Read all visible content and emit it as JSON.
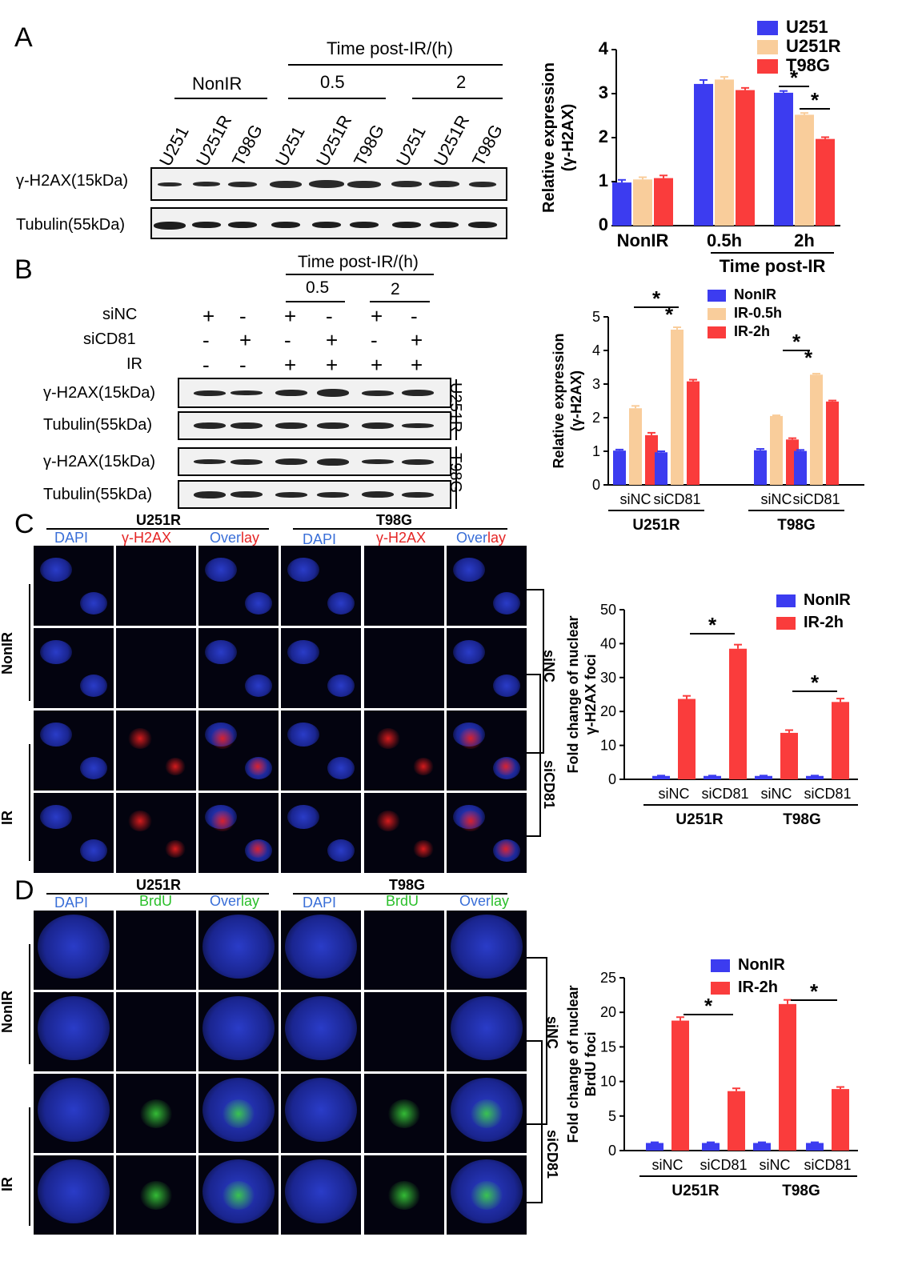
{
  "panels": {
    "A": {
      "letter": "A",
      "time_label": "Time post-IR/(h)",
      "group_labels": [
        "NonIR",
        "0.5",
        "2"
      ],
      "lanes": [
        "U251",
        "U251R",
        "T98G",
        "U251",
        "U251R",
        "T98G",
        "U251",
        "U251R",
        "T98G"
      ],
      "row_labels": [
        "γ-H2AX(15kDa)",
        "Tubulin(55kDa)"
      ]
    },
    "B": {
      "letter": "B",
      "time_label": "Time post-IR/(h)",
      "group_labels": [
        "0.5",
        "2"
      ],
      "condition_rows": [
        {
          "label": "siNC",
          "signs": [
            "+",
            "-",
            "+",
            "-",
            "+",
            "-"
          ]
        },
        {
          "label": "siCD81",
          "signs": [
            "-",
            "+",
            "-",
            "+",
            "-",
            "+"
          ]
        },
        {
          "label": "IR",
          "signs": [
            "-",
            "-",
            "+",
            "+",
            "+",
            "+"
          ]
        }
      ],
      "row_labels": [
        "γ-H2AX(15kDa)",
        "Tubulin(55kDa)",
        "γ-H2AX(15kDa)",
        "Tubulin(55kDa)"
      ],
      "side_labels": [
        "U251R",
        "T98G"
      ]
    },
    "C": {
      "letter": "C",
      "cell_lines": [
        "U251R",
        "T98G"
      ],
      "channels": [
        "DAPI",
        "γ-H2AX",
        "Over",
        "lay"
      ],
      "row_labels": [
        "NonIR",
        "IR"
      ],
      "side_labels": [
        "siNC",
        "siCD81"
      ]
    },
    "D": {
      "letter": "D",
      "cell_lines": [
        "U251R",
        "T98G"
      ],
      "channels": [
        "DAPI",
        "BrdU",
        "Over",
        "lay"
      ],
      "row_labels": [
        "NonIR",
        "IR"
      ],
      "side_labels": [
        "siNC",
        "siCD81"
      ]
    }
  },
  "colors": {
    "blue": "#3c3cf0",
    "peach": "#f9cd9b",
    "red": "#fa3c3c",
    "dapi_text": "#3a6fd8",
    "h2ax_text": "#e52525",
    "brdu_text": "#2bbf2b"
  },
  "chart_data": [
    {
      "type": "bar",
      "panel": "A",
      "categories": [
        "NonIR",
        "0.5h",
        "2h"
      ],
      "series": [
        {
          "name": "U251",
          "values": [
            0.98,
            3.22,
            3.02
          ]
        },
        {
          "name": "U251R",
          "values": [
            1.05,
            3.32,
            2.52
          ]
        },
        {
          "name": "T98G",
          "values": [
            1.08,
            3.08,
            1.97
          ]
        }
      ],
      "errors": [
        [
          0.06,
          0.09,
          0.04
        ],
        [
          0.05,
          0.06,
          0.04
        ],
        [
          0.06,
          0.05,
          0.04
        ]
      ],
      "xlabel": "Time post-IR",
      "ylabel": "Relative expression",
      "ylabel2": "(γ-H2AX)",
      "ylim": [
        0,
        4
      ],
      "yticks": [
        0,
        1,
        2,
        3,
        4
      ],
      "significance": [
        {
          "between": "U251-U251R",
          "group": 2,
          "label": "*"
        },
        {
          "between": "U251R-T98G",
          "group": 2,
          "label": "*"
        }
      ],
      "legend": "top-right"
    },
    {
      "type": "bar",
      "panel": "B",
      "categories": [
        "siNC",
        "siCD81",
        "siNC",
        "siCD81"
      ],
      "groups": [
        "U251R",
        "T98G"
      ],
      "series": [
        {
          "name": "NonIR",
          "values": [
            1.02,
            0.97,
            1.03,
            1.01
          ]
        },
        {
          "name": "IR-0.5h",
          "values": [
            2.28,
            4.62,
            2.05,
            3.28
          ]
        },
        {
          "name": "IR-2h",
          "values": [
            1.48,
            3.08,
            1.35,
            2.48
          ]
        }
      ],
      "errors": [
        [
          0.03,
          0.03,
          0.04,
          0.03
        ],
        [
          0.07,
          0.07,
          0.02,
          0.03
        ],
        [
          0.07,
          0.05,
          0.04,
          0.03
        ]
      ],
      "ylabel": "Relative expression",
      "ylabel2": "(γ-H2AX)",
      "ylim": [
        0,
        5
      ],
      "yticks": [
        0,
        1,
        2,
        3,
        4,
        5
      ],
      "significance": [
        {
          "label": "*"
        },
        {
          "label": "*"
        },
        {
          "label": "*"
        },
        {
          "label": "*"
        }
      ],
      "legend": "top-right"
    },
    {
      "type": "bar",
      "panel": "C",
      "categories": [
        "siNC",
        "siCD81",
        "siNC",
        "siCD81"
      ],
      "groups": [
        "U251R",
        "T98G"
      ],
      "series": [
        {
          "name": "NonIR",
          "values": [
            1.0,
            1.0,
            1.0,
            1.0
          ]
        },
        {
          "name": "IR-2h",
          "values": [
            23.7,
            38.5,
            13.7,
            22.8
          ]
        }
      ],
      "errors": [
        [
          0.1,
          0.1,
          0.1,
          0.1
        ],
        [
          0.9,
          1.2,
          0.8,
          1.0
        ]
      ],
      "ylabel": "Fold change of nuclear",
      "ylabel2": "γ-H2AX foci",
      "ylim": [
        0,
        50
      ],
      "yticks": [
        0,
        10,
        20,
        30,
        40,
        50
      ],
      "significance": [
        {
          "label": "*"
        },
        {
          "label": "*"
        }
      ],
      "legend": "top-right"
    },
    {
      "type": "bar",
      "panel": "D",
      "categories": [
        "siNC",
        "siCD81",
        "siNC",
        "siCD81"
      ],
      "groups": [
        "U251R",
        "T98G"
      ],
      "series": [
        {
          "name": "NonIR",
          "values": [
            1.1,
            1.1,
            1.1,
            1.1
          ]
        },
        {
          "name": "IR-2h",
          "values": [
            18.8,
            8.6,
            21.2,
            8.9
          ]
        }
      ],
      "errors": [
        [
          0.1,
          0.1,
          0.1,
          0.1
        ],
        [
          0.5,
          0.4,
          0.6,
          0.3
        ]
      ],
      "ylabel": "Fold change of nuclear",
      "ylabel2": "BrdU foci",
      "ylim": [
        0,
        25
      ],
      "yticks": [
        0,
        5,
        10,
        15,
        20,
        25
      ],
      "significance": [
        {
          "label": "*"
        },
        {
          "label": "*"
        }
      ],
      "legend": "top-right"
    }
  ]
}
